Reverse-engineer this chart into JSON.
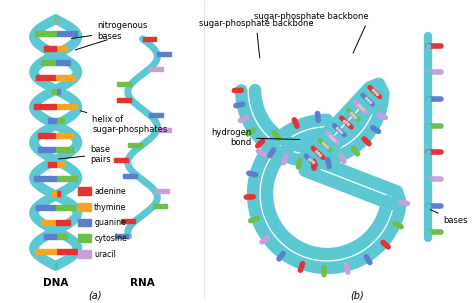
{
  "background_color": "#ffffff",
  "legend_items": [
    {
      "label": "adenine",
      "color": "#e63232"
    },
    {
      "label": "thymine",
      "color": "#f5a623"
    },
    {
      "label": "guanine",
      "color": "#5b7fcc"
    },
    {
      "label": "cytosine",
      "color": "#6dbf4a"
    },
    {
      "label": "uracil",
      "color": "#c9a0dc"
    }
  ],
  "labels_a": {
    "nitrogenous_bases": "nitrogenous\nbases",
    "base_pairs": "base\npairs",
    "helix": "helix of\nsugar-phosphates",
    "dna": "DNA",
    "rna": "RNA",
    "panel": "(a)"
  },
  "labels_b": {
    "sugar_phosphate": "sugar-phosphate backbone",
    "hydrogen_bond": "hydrogen\nbond",
    "bases": "bases",
    "panel": "(b)"
  },
  "backbone_color": "#5bc8d4",
  "adenine_color": "#e63232",
  "thymine_color": "#f5a623",
  "guanine_color": "#5b7fcc",
  "cytosine_color": "#6dbf4a",
  "uracil_color": "#c9a0dc",
  "label_fontsize": 6.0,
  "bold_label_fontsize": 7.5
}
